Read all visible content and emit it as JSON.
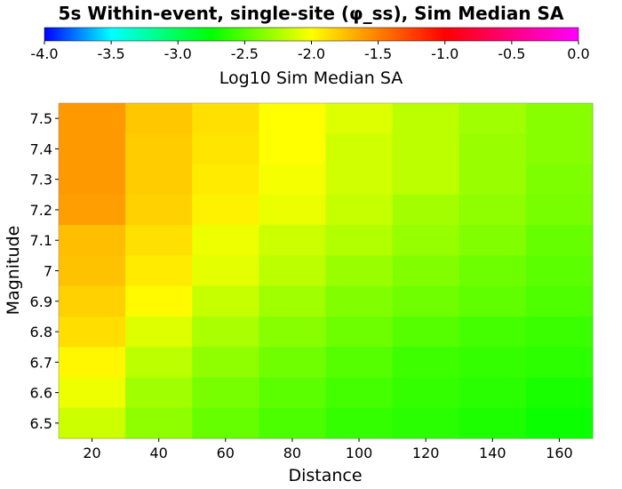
{
  "chart_data": {
    "type": "heatmap",
    "title": "5s Within-event, single-site (φ_ss), Sim Median SA",
    "xlabel": "Distance",
    "ylabel": "Magnitude",
    "colorbar": {
      "label": "Log10 Sim Median SA",
      "range": [
        -4.0,
        0.0
      ],
      "ticks": [
        "-4.0",
        "-3.5",
        "-3.0",
        "-2.5",
        "-2.0",
        "-1.5",
        "-1.0",
        "-0.5",
        "0.0"
      ],
      "stops": [
        {
          "v": -4.0,
          "color": "#0000ff"
        },
        {
          "v": -3.5,
          "color": "#00ffff"
        },
        {
          "v": -2.75,
          "color": "#00ff00"
        },
        {
          "v": -2.0,
          "color": "#ffff00"
        },
        {
          "v": -1.0,
          "color": "#ff0000"
        },
        {
          "v": 0.0,
          "color": "#ff00ff"
        }
      ]
    },
    "x_ticks": [
      "20",
      "40",
      "60",
      "80",
      "100",
      "120",
      "140",
      "160"
    ],
    "y_ticks": [
      "7.5",
      "7.4",
      "7.3",
      "7.2",
      "7.1",
      "7",
      "6.9",
      "6.8",
      "6.7",
      "6.6",
      "6.5"
    ],
    "x_centers": [
      20,
      40,
      60,
      80,
      100,
      120,
      140,
      160
    ],
    "y_centers": [
      7.5,
      7.4,
      7.3,
      7.2,
      7.1,
      7.0,
      6.9,
      6.8,
      6.7,
      6.6,
      6.5
    ],
    "xlim": [
      10,
      170
    ],
    "ylim": [
      6.45,
      7.55
    ],
    "values": [
      [
        -1.6,
        -1.78,
        -1.88,
        -2.0,
        -2.1,
        -2.2,
        -2.28,
        -2.35
      ],
      [
        -1.6,
        -1.8,
        -1.9,
        -2.0,
        -2.14,
        -2.2,
        -2.3,
        -2.35
      ],
      [
        -1.6,
        -1.8,
        -1.92,
        -2.03,
        -2.14,
        -2.2,
        -2.3,
        -2.38
      ],
      [
        -1.62,
        -1.82,
        -1.95,
        -2.06,
        -2.17,
        -2.27,
        -2.33,
        -2.4
      ],
      [
        -1.75,
        -1.88,
        -2.05,
        -2.15,
        -2.23,
        -2.31,
        -2.37,
        -2.45
      ],
      [
        -1.76,
        -1.92,
        -2.08,
        -2.2,
        -2.3,
        -2.37,
        -2.43,
        -2.48
      ],
      [
        -1.82,
        -1.98,
        -2.17,
        -2.28,
        -2.37,
        -2.42,
        -2.47,
        -2.52
      ],
      [
        -1.87,
        -2.1,
        -2.25,
        -2.35,
        -2.43,
        -2.5,
        -2.55,
        -2.58
      ],
      [
        -1.97,
        -2.2,
        -2.33,
        -2.42,
        -2.5,
        -2.57,
        -2.6,
        -2.62
      ],
      [
        -2.05,
        -2.28,
        -2.4,
        -2.48,
        -2.55,
        -2.6,
        -2.63,
        -2.68
      ],
      [
        -2.15,
        -2.33,
        -2.45,
        -2.53,
        -2.6,
        -2.63,
        -2.67,
        -2.72
      ]
    ]
  }
}
